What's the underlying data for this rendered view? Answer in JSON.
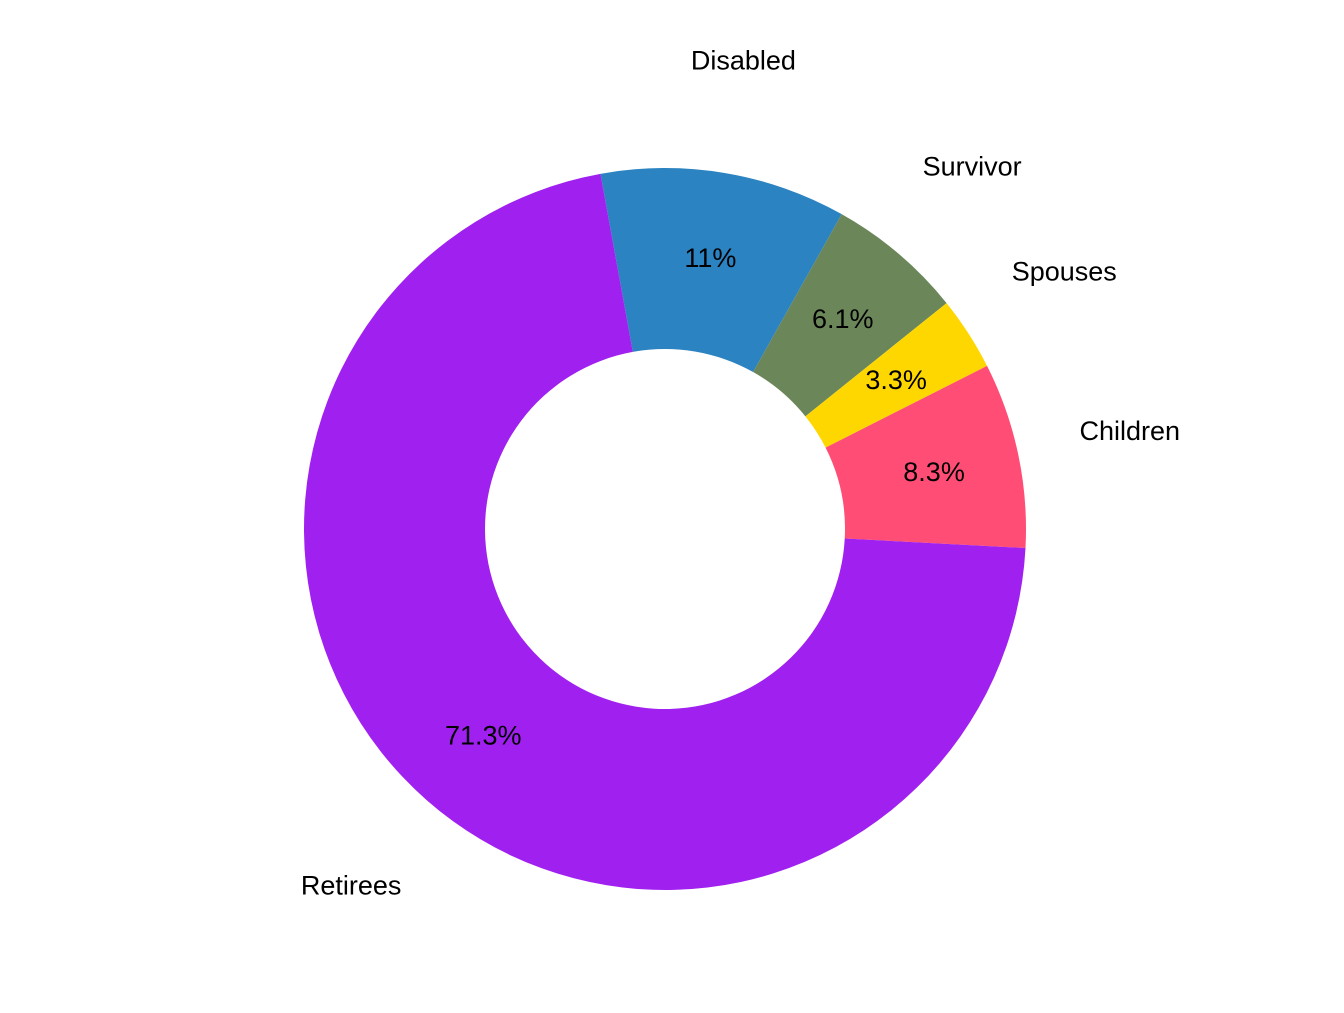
{
  "chart_data": {
    "type": "pie",
    "variant": "donut",
    "slices": [
      {
        "label": "Disabled",
        "value": 11.0,
        "value_label": "11%",
        "color": "#2B83C1"
      },
      {
        "label": "Survivor",
        "value": 6.1,
        "value_label": "6.1%",
        "color": "#6B875A"
      },
      {
        "label": "Spouses",
        "value": 3.3,
        "value_label": "3.3%",
        "color": "#FFD700"
      },
      {
        "label": "Children",
        "value": 8.3,
        "value_label": "8.3%",
        "color": "#FF4D75"
      },
      {
        "label": "Retirees",
        "value": 71.3,
        "value_label": "71.3%",
        "color": "#A020F0"
      }
    ],
    "direction": "clockwise",
    "start": "top",
    "legend": "none",
    "title": ""
  }
}
